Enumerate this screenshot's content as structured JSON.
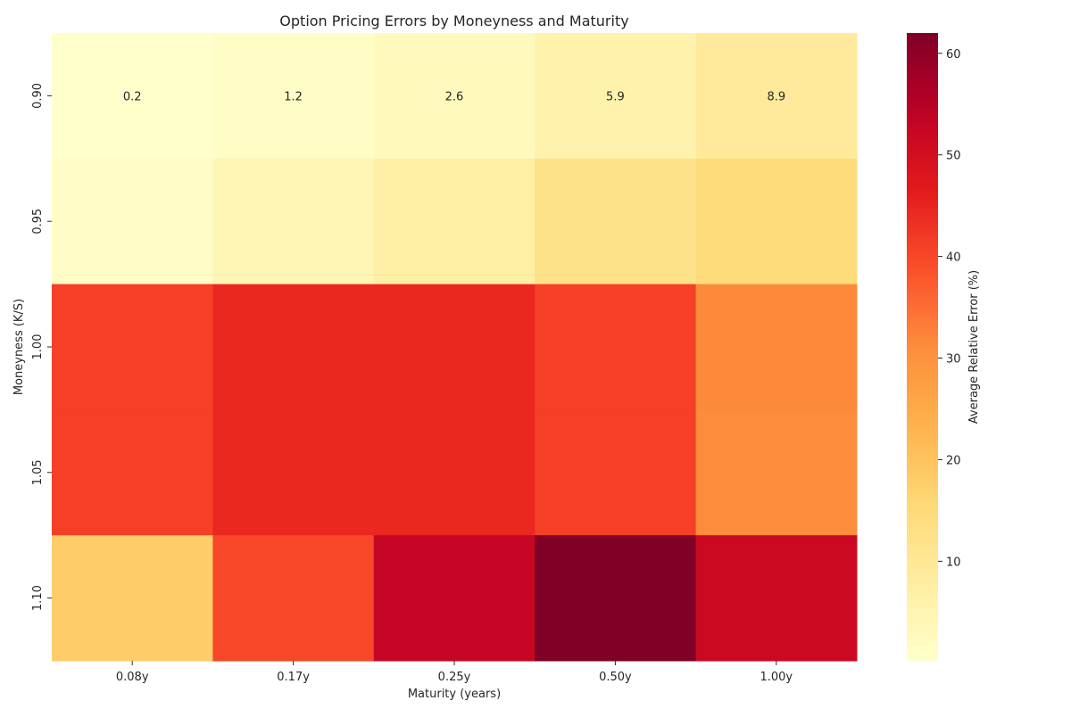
{
  "chart_data": {
    "type": "heatmap",
    "title": "Option Pricing Errors by Moneyness and Maturity",
    "xlabel": "Maturity (years)",
    "ylabel": "Moneyness (K/S)",
    "x_categories": [
      "0.08y",
      "0.17y",
      "0.25y",
      "0.50y",
      "1.00y"
    ],
    "y_categories": [
      "0.90",
      "0.95",
      "1.00",
      "1.05",
      "1.10"
    ],
    "values": [
      [
        0.2,
        1.2,
        2.6,
        5.9,
        8.9
      ],
      [
        1.5,
        4.5,
        7.0,
        12.0,
        14.5
      ],
      [
        41.0,
        44.5,
        44.5,
        41.0,
        31.5
      ],
      [
        41.0,
        44.5,
        44.5,
        41.0,
        31.0
      ],
      [
        18.0,
        40.0,
        52.5,
        62.0,
        51.5
      ]
    ],
    "annotations": [
      [
        {
          "row": 0,
          "col": 0,
          "text": "0.2"
        },
        {
          "row": 0,
          "col": 1,
          "text": "1.2"
        },
        {
          "row": 0,
          "col": 2,
          "text": "2.6"
        },
        {
          "row": 0,
          "col": 3,
          "text": "5.9"
        },
        {
          "row": 0,
          "col": 4,
          "text": "8.9"
        }
      ]
    ],
    "colormap": "YlOrRd",
    "colorbar": {
      "label": "Average Relative Error (%)",
      "vmin": 0.2,
      "vmax": 62.0,
      "ticks": [
        10,
        20,
        30,
        40,
        50,
        60
      ]
    }
  }
}
